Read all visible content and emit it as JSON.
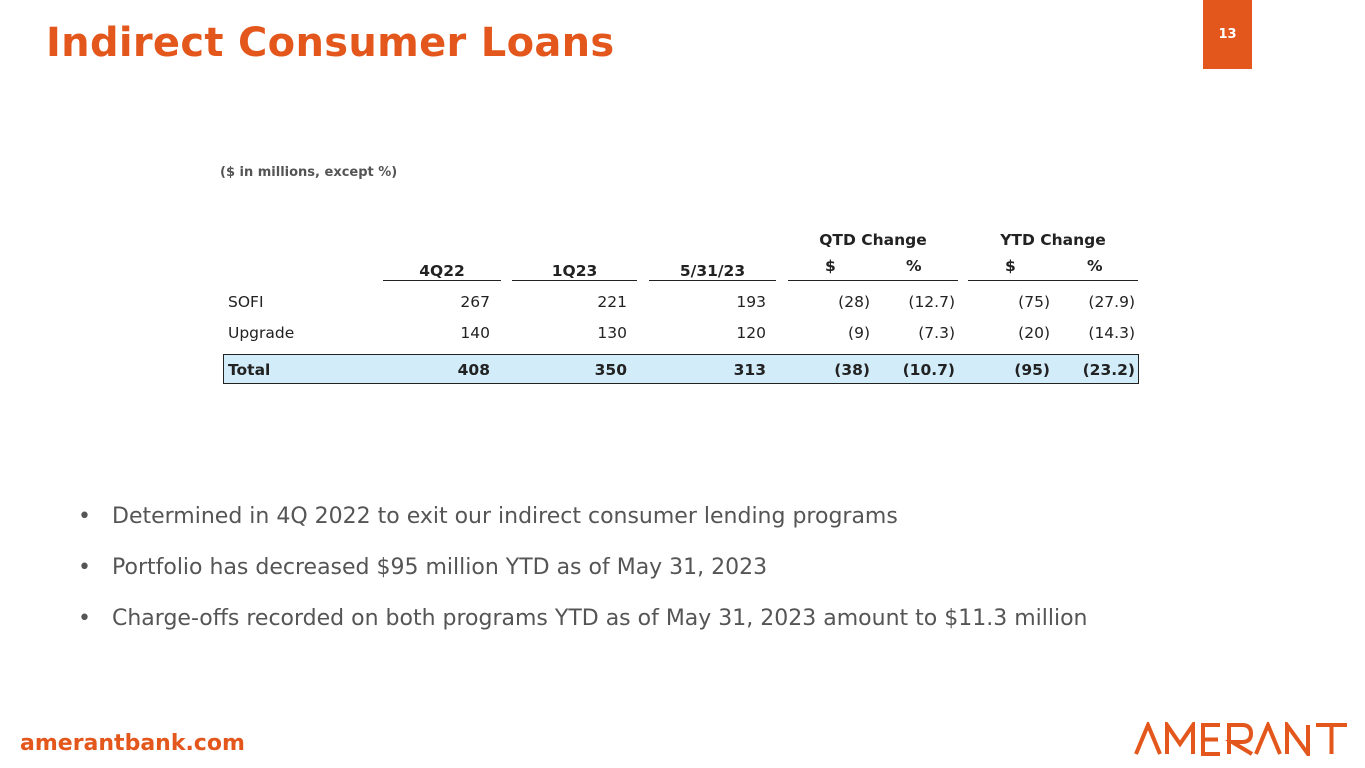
{
  "slide": {
    "title": "Indirect Consumer Loans",
    "page_number": "13"
  },
  "table": {
    "units_note": "($ in millions, except %)",
    "group_headers": {
      "qtd": "QTD Change",
      "ytd": "YTD Change"
    },
    "columns": [
      "4Q22",
      "1Q23",
      "5/31/23",
      "$",
      "%",
      "$",
      "%"
    ],
    "rows": [
      {
        "label": "SOFI",
        "values": [
          "267",
          "221",
          "193",
          "(28)",
          "(12.7)",
          "(75)",
          "(27.9)"
        ]
      },
      {
        "label": "Upgrade",
        "values": [
          "140",
          "130",
          "120",
          "(9)",
          "(7.3)",
          "(20)",
          "(14.3)"
        ]
      }
    ],
    "total": {
      "label": "Total",
      "values": [
        "408",
        "350",
        "313",
        "(38)",
        "(10.7)",
        "(95)",
        "(23.2)"
      ]
    }
  },
  "bullets": [
    "Determined in 4Q 2022 to exit our indirect consumer lending programs",
    "Portfolio has decreased $95 million YTD as of May 31, 2023",
    "Charge-offs recorded on both programs YTD as of May 31, 2023 amount to $11.3 million"
  ],
  "footer": {
    "url": "amerantbank.com",
    "logo_text": "AMERANT"
  },
  "colors": {
    "brand_orange": "#e3571c",
    "total_row_fill": "#d2ecfa"
  }
}
